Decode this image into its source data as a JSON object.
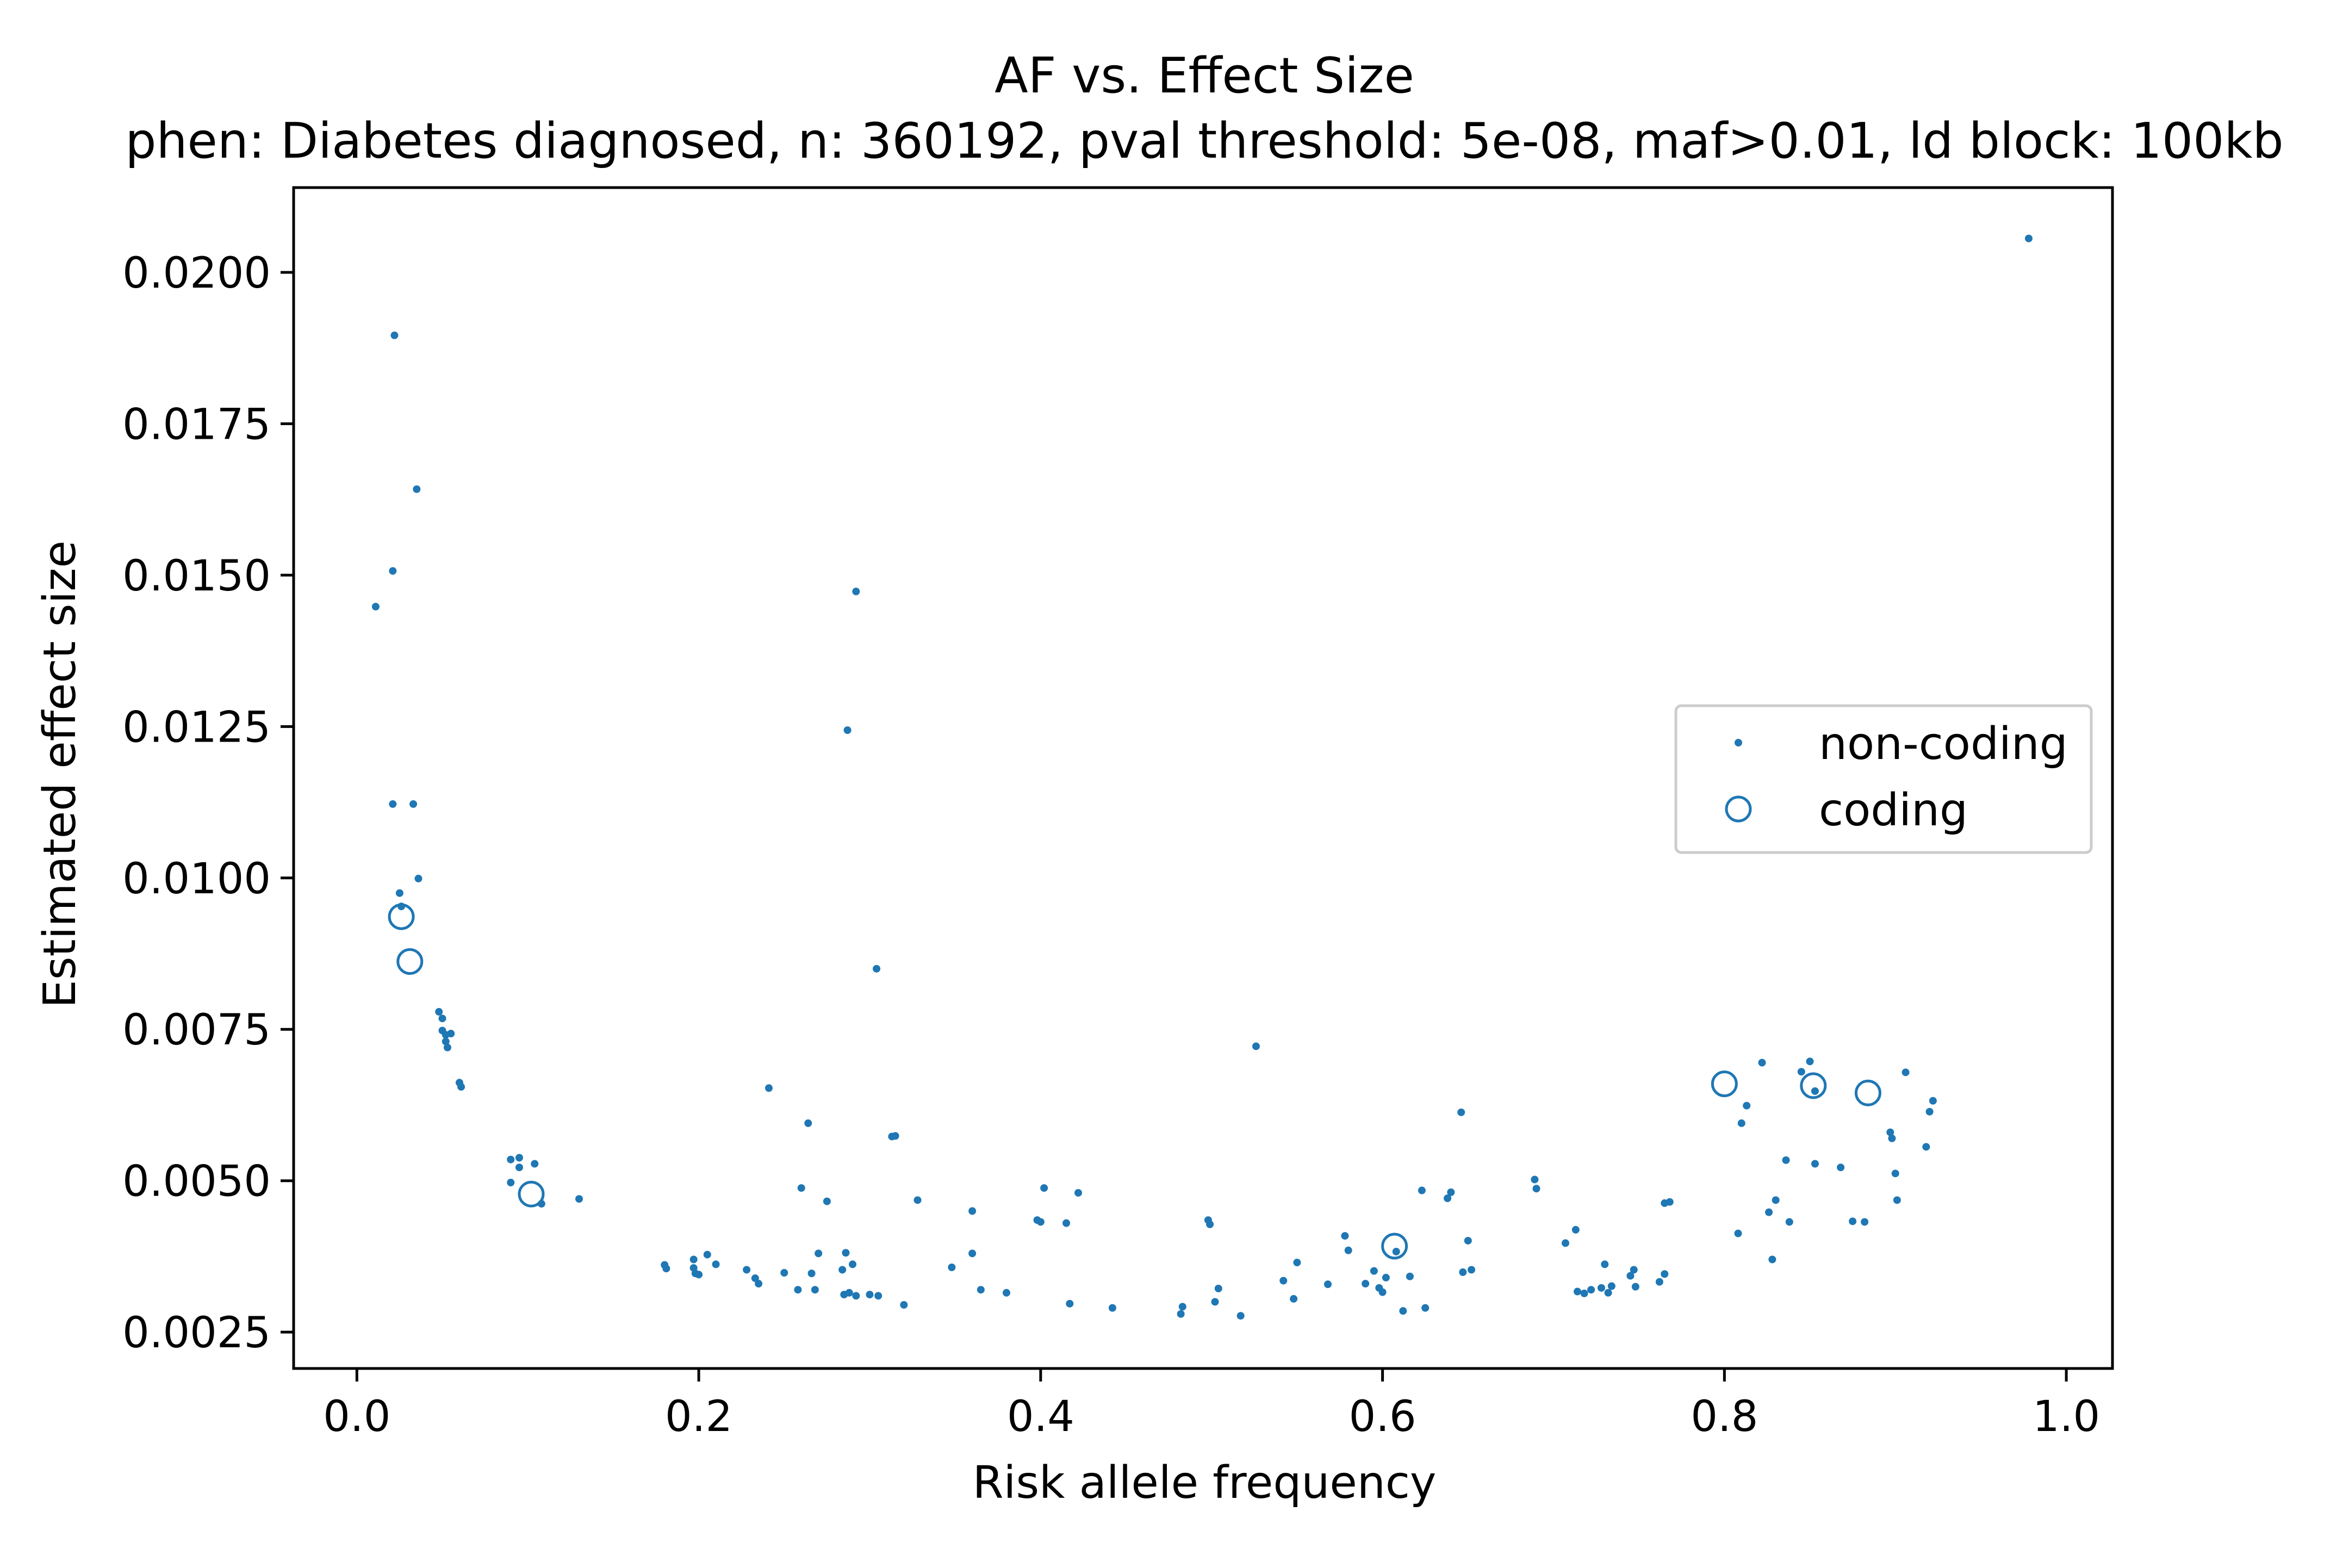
{
  "chart_data": {
    "type": "scatter",
    "title": "AF vs. Effect Size",
    "subtitle": "phen: Diabetes diagnosed, n: 360192, pval threshold: 5e-08, maf>0.01, ld block: 100kb",
    "xlabel": "Risk allele frequency",
    "ylabel": "Estimated effect size",
    "xlim": [
      -0.037,
      1.027
    ],
    "ylim": [
      0.0019,
      0.0214
    ],
    "xticks": [
      0.0,
      0.2,
      0.4,
      0.6,
      0.8,
      1.0
    ],
    "xtick_labels": [
      "0.0",
      "0.2",
      "0.4",
      "0.6",
      "0.8",
      "1.0"
    ],
    "yticks": [
      0.0025,
      0.005,
      0.0075,
      0.01,
      0.0125,
      0.015,
      0.0175,
      0.02
    ],
    "ytick_labels": [
      "0.0025",
      "0.0050",
      "0.0075",
      "0.0100",
      "0.0125",
      "0.0150",
      "0.0175",
      "0.0200"
    ],
    "grid": false,
    "legend_position": "center-right",
    "color": "#1f77b4",
    "series": [
      {
        "name": "non-coding",
        "marker": "dot",
        "points": [
          [
            0.011,
            0.01448
          ],
          [
            0.021,
            0.01507
          ],
          [
            0.022,
            0.01896
          ],
          [
            0.035,
            0.01642
          ],
          [
            0.021,
            0.01122
          ],
          [
            0.033,
            0.01122
          ],
          [
            0.025,
            0.00975
          ],
          [
            0.026,
            0.00953
          ],
          [
            0.036,
            0.00999
          ],
          [
            0.048,
            0.00779
          ],
          [
            0.05,
            0.00768
          ],
          [
            0.05,
            0.00748
          ],
          [
            0.052,
            0.00741
          ],
          [
            0.055,
            0.00743
          ],
          [
            0.052,
            0.0073
          ],
          [
            0.053,
            0.0072
          ],
          [
            0.06,
            0.00662
          ],
          [
            0.061,
            0.00655
          ],
          [
            0.09,
            0.00535
          ],
          [
            0.095,
            0.00538
          ],
          [
            0.095,
            0.00522
          ],
          [
            0.104,
            0.00528
          ],
          [
            0.09,
            0.00497
          ],
          [
            0.108,
            0.00462
          ],
          [
            0.13,
            0.0047
          ],
          [
            0.18,
            0.00361
          ],
          [
            0.181,
            0.00355
          ],
          [
            0.197,
            0.0037
          ],
          [
            0.197,
            0.00356
          ],
          [
            0.198,
            0.00347
          ],
          [
            0.2,
            0.00345
          ],
          [
            0.205,
            0.00378
          ],
          [
            0.21,
            0.00362
          ],
          [
            0.228,
            0.00353
          ],
          [
            0.233,
            0.00339
          ],
          [
            0.235,
            0.0033
          ],
          [
            0.241,
            0.00653
          ],
          [
            0.25,
            0.00348
          ],
          [
            0.26,
            0.00488
          ],
          [
            0.258,
            0.0032
          ],
          [
            0.264,
            0.00595
          ],
          [
            0.266,
            0.00347
          ],
          [
            0.268,
            0.0032
          ],
          [
            0.27,
            0.0038
          ],
          [
            0.275,
            0.00466
          ],
          [
            0.284,
            0.00353
          ],
          [
            0.286,
            0.00381
          ],
          [
            0.288,
            0.00315
          ],
          [
            0.29,
            0.00362
          ],
          [
            0.285,
            0.00312
          ],
          [
            0.292,
            0.0031
          ],
          [
            0.287,
            0.01244
          ],
          [
            0.292,
            0.01473
          ],
          [
            0.3,
            0.00312
          ],
          [
            0.304,
            0.0085
          ],
          [
            0.305,
            0.0031
          ],
          [
            0.313,
            0.00573
          ],
          [
            0.315,
            0.00574
          ],
          [
            0.32,
            0.00295
          ],
          [
            0.328,
            0.00468
          ],
          [
            0.348,
            0.00357
          ],
          [
            0.36,
            0.0045
          ],
          [
            0.36,
            0.0038
          ],
          [
            0.365,
            0.0032
          ],
          [
            0.38,
            0.00315
          ],
          [
            0.398,
            0.00435
          ],
          [
            0.4,
            0.00432
          ],
          [
            0.402,
            0.00488
          ],
          [
            0.415,
            0.0043
          ],
          [
            0.417,
            0.00297
          ],
          [
            0.422,
            0.0048
          ],
          [
            0.442,
            0.0029
          ],
          [
            0.482,
            0.0028
          ],
          [
            0.483,
            0.00292
          ],
          [
            0.498,
            0.00435
          ],
          [
            0.499,
            0.00428
          ],
          [
            0.502,
            0.003
          ],
          [
            0.504,
            0.00322
          ],
          [
            0.517,
            0.00277
          ],
          [
            0.526,
            0.00722
          ],
          [
            0.542,
            0.00335
          ],
          [
            0.548,
            0.00305
          ],
          [
            0.55,
            0.00365
          ],
          [
            0.568,
            0.00329
          ],
          [
            0.578,
            0.00409
          ],
          [
            0.58,
            0.00385
          ],
          [
            0.59,
            0.0033
          ],
          [
            0.595,
            0.00351
          ],
          [
            0.598,
            0.00323
          ],
          [
            0.6,
            0.00316
          ],
          [
            0.602,
            0.0034
          ],
          [
            0.608,
            0.00383
          ],
          [
            0.612,
            0.00285
          ],
          [
            0.616,
            0.00342
          ],
          [
            0.623,
            0.00484
          ],
          [
            0.625,
            0.0029
          ],
          [
            0.638,
            0.00471
          ],
          [
            0.64,
            0.00481
          ],
          [
            0.646,
            0.00613
          ],
          [
            0.647,
            0.00349
          ],
          [
            0.65,
            0.00401
          ],
          [
            0.652,
            0.00353
          ],
          [
            0.689,
            0.00502
          ],
          [
            0.69,
            0.00487
          ],
          [
            0.707,
            0.00397
          ],
          [
            0.713,
            0.00419
          ],
          [
            0.714,
            0.00317
          ],
          [
            0.718,
            0.00314
          ],
          [
            0.722,
            0.0032
          ],
          [
            0.728,
            0.00323
          ],
          [
            0.73,
            0.00362
          ],
          [
            0.732,
            0.00315
          ],
          [
            0.734,
            0.00326
          ],
          [
            0.745,
            0.00343
          ],
          [
            0.747,
            0.00353
          ],
          [
            0.748,
            0.00325
          ],
          [
            0.762,
            0.00333
          ],
          [
            0.765,
            0.00346
          ],
          [
            0.765,
            0.00463
          ],
          [
            0.768,
            0.00465
          ],
          [
            0.808,
            0.00413
          ],
          [
            0.822,
            0.00695
          ],
          [
            0.826,
            0.00448
          ],
          [
            0.828,
            0.0037
          ],
          [
            0.83,
            0.00468
          ],
          [
            0.836,
            0.00534
          ],
          [
            0.838,
            0.00432
          ],
          [
            0.81,
            0.00595
          ],
          [
            0.813,
            0.00624
          ],
          [
            0.845,
            0.0068
          ],
          [
            0.85,
            0.00697
          ],
          [
            0.853,
            0.00528
          ],
          [
            0.853,
            0.00648
          ],
          [
            0.868,
            0.00522
          ],
          [
            0.875,
            0.00433
          ],
          [
            0.882,
            0.00432
          ],
          [
            0.897,
            0.0058
          ],
          [
            0.898,
            0.0057
          ],
          [
            0.9,
            0.00512
          ],
          [
            0.901,
            0.00468
          ],
          [
            0.906,
            0.00679
          ],
          [
            0.918,
            0.00556
          ],
          [
            0.92,
            0.00614
          ],
          [
            0.922,
            0.00632
          ],
          [
            0.978,
            0.02056
          ]
        ]
      },
      {
        "name": "coding",
        "marker": "open-circle",
        "points": [
          [
            0.026,
            0.00936
          ],
          [
            0.031,
            0.00862
          ],
          [
            0.102,
            0.00478
          ],
          [
            0.607,
            0.00392
          ],
          [
            0.8,
            0.0066
          ],
          [
            0.852,
            0.00657
          ],
          [
            0.884,
            0.00645
          ]
        ]
      }
    ]
  }
}
